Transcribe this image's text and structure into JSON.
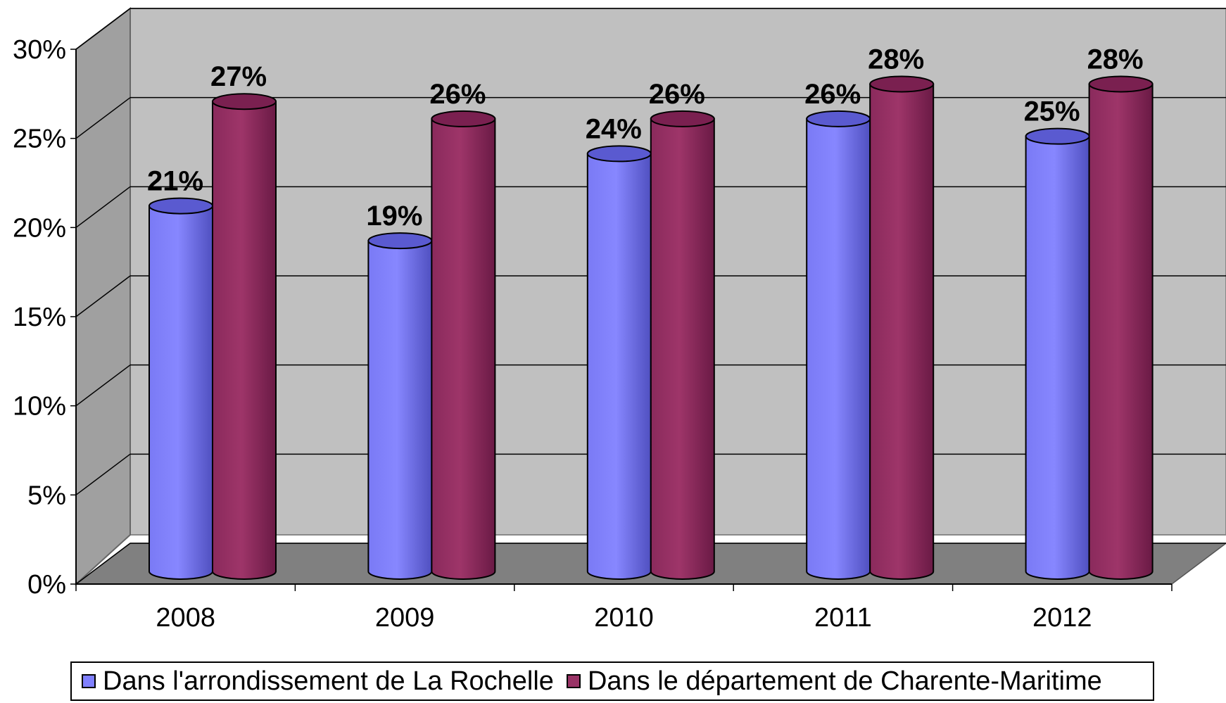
{
  "chart_data": {
    "type": "bar",
    "categories": [
      "2008",
      "2009",
      "2010",
      "2011",
      "2012"
    ],
    "series": [
      {
        "name": "Dans l'arrondissement de La Rochelle",
        "values": [
          21,
          19,
          24,
          26,
          25
        ],
        "labels": [
          "21%",
          "19%",
          "24%",
          "26%",
          "25%"
        ],
        "color": "#8080FF"
      },
      {
        "name": "Dans le département de Charente-Maritime",
        "values": [
          27,
          26,
          26,
          28,
          28
        ],
        "labels": [
          "27%",
          "26%",
          "26%",
          "28%",
          "28%"
        ],
        "color": "#993366"
      }
    ],
    "yticks": [
      "0%",
      "5%",
      "10%",
      "15%",
      "20%",
      "25%",
      "30%"
    ],
    "ylim": [
      0,
      30
    ],
    "grid": true,
    "legend_position": "bottom",
    "style": "3d-cylinder",
    "title": "",
    "xlabel": "",
    "ylabel": ""
  }
}
